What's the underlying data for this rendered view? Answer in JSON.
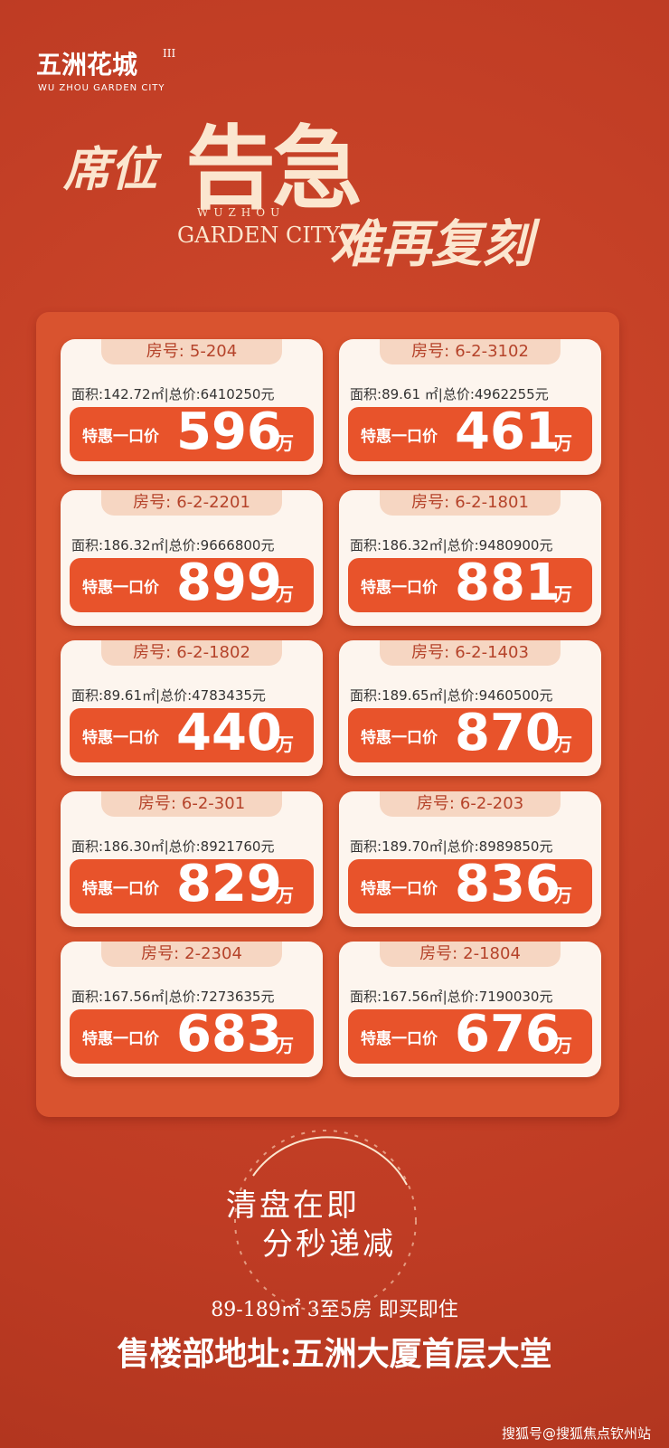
{
  "brand": {
    "name": "五洲花城",
    "phase": "III",
    "english": "WU ZHOU GARDEN CITY"
  },
  "headline": {
    "left": "席位",
    "main": "告急",
    "en_small": "WUZHOU",
    "en_large": "GARDEN CITY",
    "sub": "难再复刻"
  },
  "labels": {
    "room": "房号:",
    "area": "面积:",
    "total": "|总价:",
    "offer": "特惠一口价",
    "unit": "万"
  },
  "cards": [
    {
      "room": "5-204",
      "area": "142.72㎡",
      "total": "6410250元",
      "price": "596"
    },
    {
      "room": "6-2-3102",
      "area": "89.61 ㎡",
      "total": "4962255元",
      "price": "461"
    },
    {
      "room": "6-2-2201",
      "area": "186.32㎡",
      "total": "9666800元",
      "price": "899"
    },
    {
      "room": "6-2-1801",
      "area": "186.32㎡",
      "total": "9480900元",
      "price": "881"
    },
    {
      "room": "6-2-1802",
      "area": "89.61㎡",
      "total": "4783435元",
      "price": "440"
    },
    {
      "room": "6-2-1403",
      "area": "189.65㎡",
      "total": "9460500元",
      "price": "870"
    },
    {
      "room": "6-2-301",
      "area": "186.30㎡",
      "total": "8921760元",
      "price": "829"
    },
    {
      "room": "6-2-203",
      "area": "189.70㎡",
      "total": "8989850元",
      "price": "836"
    },
    {
      "room": "2-2304",
      "area": "167.56㎡",
      "total": "7273635元",
      "price": "683"
    },
    {
      "room": "2-1804",
      "area": "167.56㎡",
      "total": "7190030元",
      "price": "676"
    }
  ],
  "footer": {
    "line1": "清盘在即",
    "line2": "分秒递减",
    "spec": "89-189㎡ 3至5房  即买即住",
    "address": "售楼部地址:五洲大厦首层大堂",
    "watermark": "搜狐号@搜狐焦点钦州站"
  }
}
